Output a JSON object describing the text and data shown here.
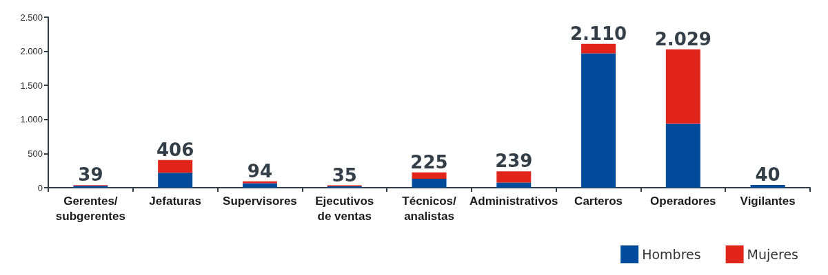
{
  "chart_data": {
    "type": "bar",
    "stacked": true,
    "categories": [
      "Gerentes/\nsubgerentes",
      "Jefaturas",
      "Supervisores",
      "Ejecutivos\nde ventas",
      "Técnicos/\nanalistas",
      "Administrativos",
      "Carteros",
      "Operadores",
      "Vigilantes"
    ],
    "series": [
      {
        "name": "Hombres",
        "color": "#004b9b",
        "values": [
          28,
          218,
          66,
          20,
          130,
          75,
          1970,
          940,
          40
        ]
      },
      {
        "name": "Mujeres",
        "color": "#e1251b",
        "values": [
          11,
          188,
          28,
          15,
          95,
          164,
          140,
          1089,
          0
        ]
      }
    ],
    "totals": [
      "39",
      "406",
      "94",
      "35",
      "225",
      "239",
      "2.110",
      "2.029",
      "40"
    ],
    "ylim": [
      0,
      2500
    ],
    "yticks": [
      0,
      500,
      {
        "value": 1000,
        "label": "1.000"
      },
      {
        "value": 1500,
        "label": "1.500"
      },
      {
        "value": 2000,
        "label": "2.000"
      },
      {
        "value": 2500,
        "label": "2.500"
      }
    ],
    "grid": false,
    "legend": "bottom right"
  }
}
